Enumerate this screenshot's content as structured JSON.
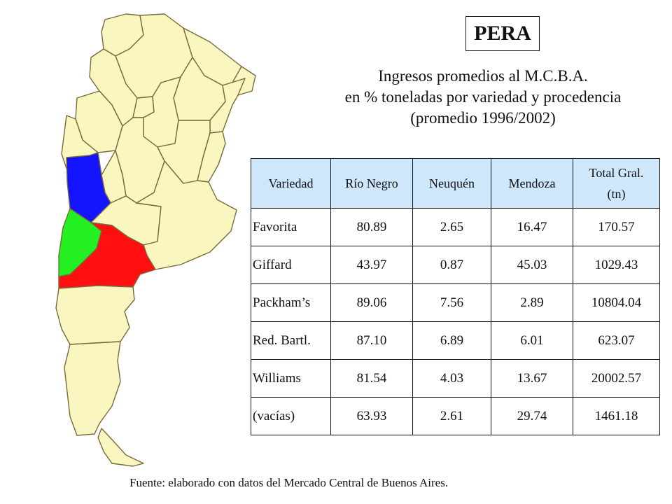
{
  "product_label": "PERA",
  "subtitle_lines": [
    "Ingresos promedios al M.C.B.A.",
    "en % toneladas por variedad y procedencia",
    "(promedio 1996/2002)"
  ],
  "table": {
    "headers": [
      "Variedad",
      "Río Negro",
      "Neuquén",
      "Mendoza",
      "Total Gral.",
      "(tn)"
    ],
    "rows": [
      [
        "Favorita",
        "80.89",
        "2.65",
        "16.47",
        "170.57"
      ],
      [
        "Giffard",
        "43.97",
        "0.87",
        "45.03",
        "1029.43"
      ],
      [
        "Packham’s",
        "89.06",
        "7.56",
        "2.89",
        "10804.04"
      ],
      [
        "Red. Bartl.",
        "87.10",
        "6.89",
        "6.01",
        "623.07"
      ],
      [
        "Williams",
        "81.54",
        "4.03",
        "13.67",
        "20002.57"
      ],
      [
        "(vacías)",
        "63.93",
        "2.61",
        "29.74",
        "1461.18"
      ]
    ]
  },
  "map": {
    "base_color": "#faf6bf",
    "highlight_colors": {
      "Mendoza": "#1414ff",
      "Neuquén": "#22f022",
      "Río Negro": "#ff0f0f"
    }
  },
  "source": "Fuente: elaborado con datos del Mercado Central de Buenos Aires."
}
